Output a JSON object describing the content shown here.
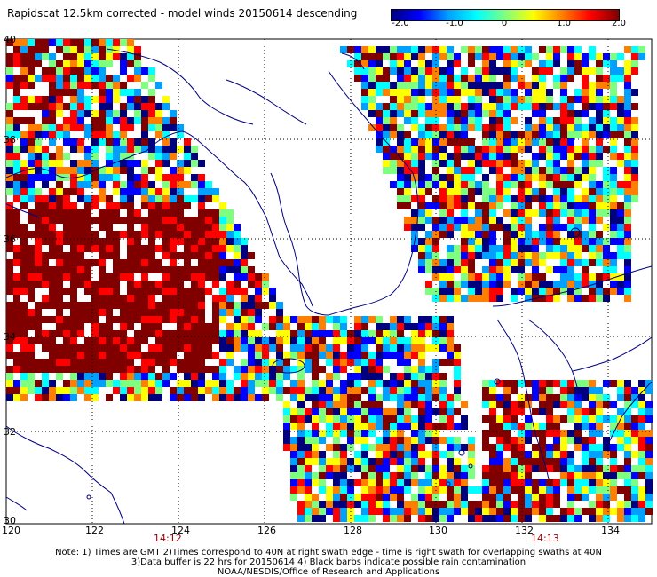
{
  "title": "Rapidscat 12.5km corrected - model winds 20150614 descending",
  "colorbar": {
    "ticks": [
      "-2.0",
      "-1.0",
      "0",
      "1.0",
      "2.0"
    ],
    "stops": [
      "#00007f",
      "#0000ff",
      "#00a0ff",
      "#00ffff",
      "#7fff7f",
      "#ffff00",
      "#ff8000",
      "#ff0000",
      "#800000"
    ],
    "range": [
      -2.0,
      2.0
    ]
  },
  "map": {
    "lon_range": [
      120,
      135
    ],
    "lat_range": [
      30,
      40
    ],
    "x_ticks": [
      "120",
      "122",
      "124",
      "126",
      "128",
      "130",
      "132",
      "134"
    ],
    "y_ticks": [
      "40",
      "38",
      "36",
      "34",
      "32",
      "30"
    ],
    "time_labels": [
      "14:12",
      "14:13"
    ],
    "coast_color": "#000080",
    "grid_color": "#000000"
  },
  "notes": {
    "line1": "Note: 1) Times are GMT 2)Times correspond to 40N at right swath edge - time is right swath for overlapping swaths at 40N",
    "line2": "3)Data buffer is 22 hrs for 20150614 4) Black barbs indicate possible rain contamination",
    "line3": "NOAA/NESDIS/Office of Research and Applications"
  }
}
